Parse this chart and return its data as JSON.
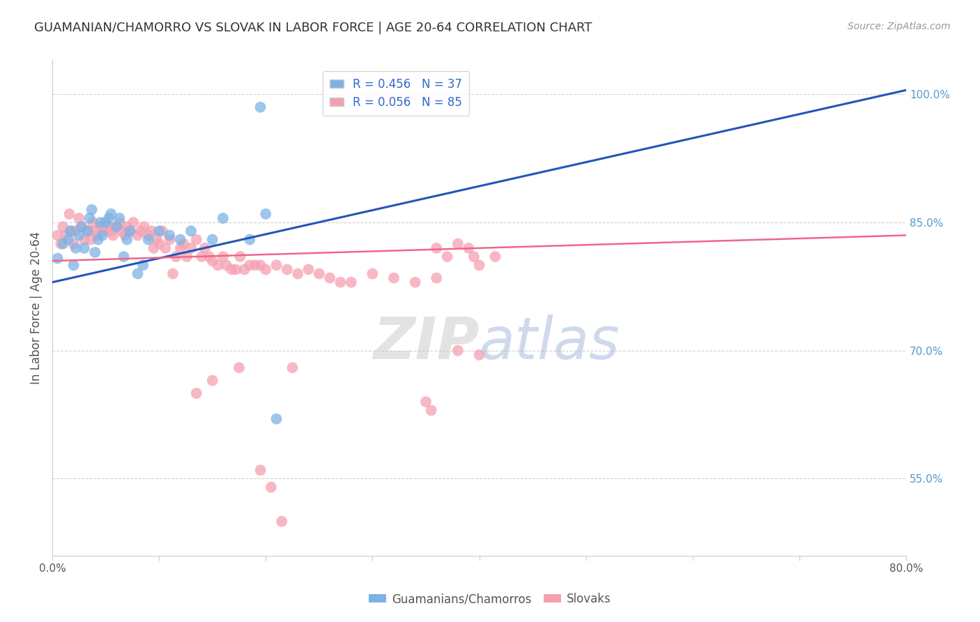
{
  "title": "GUAMANIAN/CHAMORRO VS SLOVAK IN LABOR FORCE | AGE 20-64 CORRELATION CHART",
  "source_text": "Source: ZipAtlas.com",
  "ylabel": "In Labor Force | Age 20-64",
  "legend_labels": [
    "Guamanians/Chamorros",
    "Slovaks"
  ],
  "r_blue": 0.456,
  "n_blue": 37,
  "r_pink": 0.056,
  "n_pink": 85,
  "xlim": [
    0.0,
    0.8
  ],
  "ylim": [
    0.46,
    1.04
  ],
  "xtick_positions": [
    0.0,
    0.1,
    0.2,
    0.3,
    0.4,
    0.5,
    0.6,
    0.7,
    0.8
  ],
  "xticklabels": [
    "0.0%",
    "",
    "",
    "",
    "",
    "",
    "",
    "",
    "80.0%"
  ],
  "yticks_right": [
    0.55,
    0.7,
    0.85,
    1.0
  ],
  "yticklabels_right": [
    "55.0%",
    "70.0%",
    "85.0%",
    "100.0%"
  ],
  "blue_color": "#7EB2E4",
  "pink_color": "#F5A0B0",
  "blue_line_color": "#2255BB",
  "pink_line_color": "#EE6688",
  "background_color": "#FFFFFF",
  "grid_color": "#CCCCCC",
  "title_color": "#333333",
  "axis_label_color": "#555555",
  "right_tick_color": "#5599CC",
  "blue_x": [
    0.005,
    0.01,
    0.015,
    0.017,
    0.02,
    0.022,
    0.025,
    0.027,
    0.03,
    0.033,
    0.035,
    0.037,
    0.04,
    0.043,
    0.045,
    0.047,
    0.05,
    0.053,
    0.055,
    0.06,
    0.063,
    0.067,
    0.07,
    0.073,
    0.08,
    0.085,
    0.09,
    0.1,
    0.11,
    0.12,
    0.13,
    0.15,
    0.16,
    0.185,
    0.195,
    0.2,
    0.21
  ],
  "blue_y": [
    0.808,
    0.825,
    0.83,
    0.84,
    0.8,
    0.82,
    0.835,
    0.845,
    0.82,
    0.84,
    0.855,
    0.865,
    0.815,
    0.83,
    0.85,
    0.835,
    0.85,
    0.855,
    0.86,
    0.845,
    0.855,
    0.81,
    0.83,
    0.84,
    0.79,
    0.8,
    0.83,
    0.84,
    0.835,
    0.83,
    0.84,
    0.83,
    0.855,
    0.83,
    0.985,
    0.86,
    0.62
  ],
  "pink_x": [
    0.005,
    0.008,
    0.01,
    0.013,
    0.016,
    0.018,
    0.02,
    0.022,
    0.025,
    0.028,
    0.03,
    0.033,
    0.036,
    0.038,
    0.04,
    0.042,
    0.045,
    0.048,
    0.05,
    0.052,
    0.055,
    0.057,
    0.06,
    0.063,
    0.065,
    0.068,
    0.07,
    0.073,
    0.076,
    0.08,
    0.083,
    0.086,
    0.09,
    0.093,
    0.095,
    0.098,
    0.1,
    0.103,
    0.106,
    0.11,
    0.113,
    0.116,
    0.12,
    0.123,
    0.126,
    0.13,
    0.135,
    0.14,
    0.143,
    0.147,
    0.15,
    0.155,
    0.16,
    0.163,
    0.168,
    0.172,
    0.176,
    0.18,
    0.185,
    0.19,
    0.195,
    0.2,
    0.21,
    0.22,
    0.23,
    0.24,
    0.25,
    0.26,
    0.27,
    0.28,
    0.3,
    0.32,
    0.34,
    0.36,
    0.38,
    0.4,
    0.35,
    0.355,
    0.36,
    0.37,
    0.38,
    0.39,
    0.395,
    0.4,
    0.415
  ],
  "pink_y": [
    0.835,
    0.825,
    0.845,
    0.835,
    0.86,
    0.84,
    0.825,
    0.84,
    0.855,
    0.845,
    0.83,
    0.84,
    0.83,
    0.85,
    0.84,
    0.835,
    0.845,
    0.84,
    0.85,
    0.845,
    0.84,
    0.835,
    0.845,
    0.85,
    0.84,
    0.835,
    0.845,
    0.84,
    0.85,
    0.835,
    0.84,
    0.845,
    0.835,
    0.84,
    0.82,
    0.83,
    0.825,
    0.84,
    0.82,
    0.83,
    0.79,
    0.81,
    0.82,
    0.825,
    0.81,
    0.82,
    0.83,
    0.81,
    0.82,
    0.81,
    0.805,
    0.8,
    0.81,
    0.8,
    0.795,
    0.795,
    0.81,
    0.795,
    0.8,
    0.8,
    0.8,
    0.795,
    0.8,
    0.795,
    0.79,
    0.795,
    0.79,
    0.785,
    0.78,
    0.78,
    0.79,
    0.785,
    0.78,
    0.785,
    0.7,
    0.695,
    0.64,
    0.63,
    0.82,
    0.81,
    0.825,
    0.82,
    0.81,
    0.8,
    0.81
  ],
  "pink_outlier_x": [
    0.135,
    0.15,
    0.175,
    0.195,
    0.205,
    0.215,
    0.225
  ],
  "pink_outlier_y": [
    0.65,
    0.665,
    0.68,
    0.56,
    0.54,
    0.5,
    0.68
  ],
  "blue_trend_x": [
    0.0,
    0.8
  ],
  "blue_trend_y": [
    0.78,
    1.005
  ],
  "pink_trend_x": [
    0.0,
    0.8
  ],
  "pink_trend_y": [
    0.805,
    0.835
  ]
}
